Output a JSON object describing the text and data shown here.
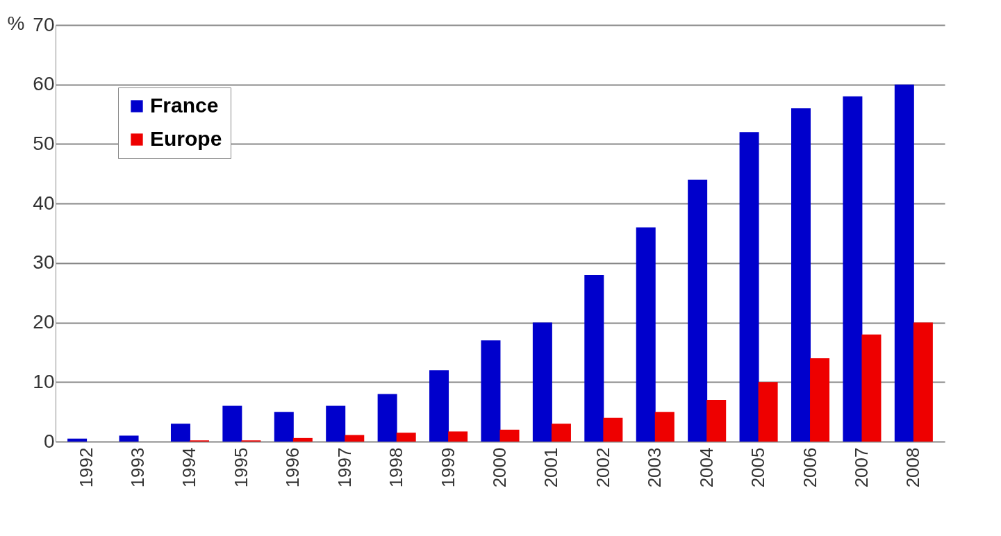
{
  "chart_data": {
    "type": "bar",
    "ylabel": "%",
    "categories": [
      "1992",
      "1993",
      "1994",
      "1995",
      "1996",
      "1997",
      "1998",
      "1999",
      "2000",
      "2001",
      "2002",
      "2003",
      "2004",
      "2005",
      "2006",
      "2007",
      "2008"
    ],
    "series": [
      {
        "name": "France",
        "color": "#0000cc",
        "values": [
          0.5,
          1,
          3,
          6,
          5,
          6,
          8,
          12,
          17,
          20,
          28,
          36,
          44,
          52,
          56,
          58,
          60
        ]
      },
      {
        "name": "Europe",
        "color": "#ee0000",
        "values": [
          0,
          0,
          0.2,
          0.2,
          0.6,
          1.1,
          1.5,
          1.7,
          2,
          3,
          4,
          5,
          7,
          10,
          14,
          18,
          20
        ]
      }
    ],
    "ylim": [
      0,
      70
    ],
    "yticks": [
      0,
      10,
      20,
      30,
      40,
      50,
      60,
      70
    ],
    "grid": "y",
    "legend": "top left"
  }
}
